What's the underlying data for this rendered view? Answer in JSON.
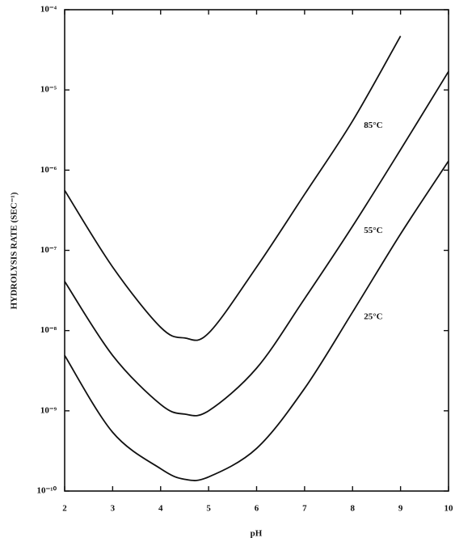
{
  "chart_data": {
    "type": "line",
    "x_label": "pH",
    "y_label": "HYDROLYSIS RATE (SEC⁻¹)",
    "y_scale": "log",
    "x": [
      2,
      3,
      4,
      4.5,
      5,
      6,
      7,
      8,
      9,
      10
    ],
    "series": [
      {
        "name": "85°C",
        "color": "#111111",
        "values": [
          5.6e-07,
          6.2e-08,
          1.1e-08,
          8.1e-09,
          9.3e-09,
          6.2e-08,
          5e-07,
          4.1e-06,
          4.7e-05,
          null
        ]
      },
      {
        "name": "55°C",
        "color": "#111111",
        "values": [
          4.1e-08,
          4.9e-09,
          1.2e-09,
          9.1e-10,
          1e-09,
          3.4e-09,
          2.5e-08,
          2e-07,
          1.8e-06,
          1.7e-05
        ]
      },
      {
        "name": "25°C",
        "color": "#111111",
        "values": [
          4.9e-09,
          5.4e-10,
          1.9e-10,
          1.4e-10,
          1.5e-10,
          3.4e-10,
          1.9e-09,
          1.7e-08,
          1.6e-07,
          1.3e-06
        ]
      }
    ],
    "xlim": [
      2,
      10
    ],
    "xticks": [
      2,
      3,
      4,
      5,
      6,
      7,
      8,
      9,
      10
    ],
    "ylim": [
      1e-10,
      0.0001
    ],
    "yticks": [
      {
        "value": 1e-10,
        "label": "10⁻¹⁰"
      },
      {
        "value": 1e-09,
        "label": "10⁻⁹"
      },
      {
        "value": 1e-08,
        "label": "10⁻⁸"
      },
      {
        "value": 1e-07,
        "label": "10⁻⁷"
      },
      {
        "value": 1e-06,
        "label": "10⁻⁶"
      },
      {
        "value": 1e-05,
        "label": "10⁻⁵"
      },
      {
        "value": 0.0001,
        "label": "10⁻⁴"
      }
    ]
  }
}
